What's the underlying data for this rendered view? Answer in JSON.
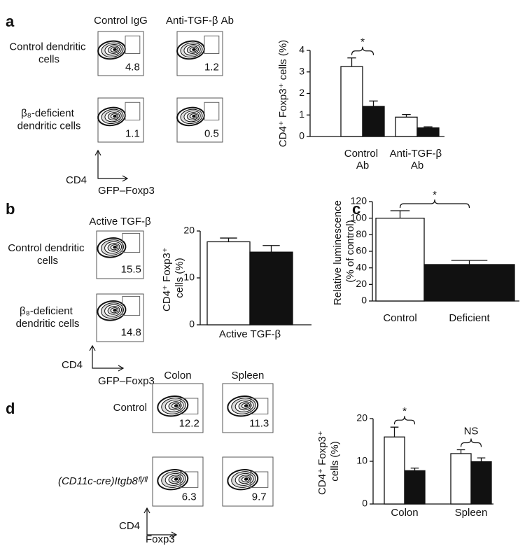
{
  "panel_labels": [
    "a",
    "b",
    "c",
    "d"
  ],
  "flow_panels": [
    {
      "columns": [
        "Control IgG",
        "Anti-TGF-β Ab"
      ],
      "rows": [
        "Control dendritic cells",
        "β₈-deficient dendritic cells"
      ],
      "gate_values": [
        [
          4.8,
          1.2
        ],
        [
          1.1,
          0.5
        ]
      ],
      "y_axis": "CD4",
      "x_axis": "GFP–Foxp3"
    },
    {
      "columns": [
        "Active TGF-β"
      ],
      "rows": [
        "Control dendritic cells",
        "β₈-deficient dendritic cells"
      ],
      "gate_values": [
        [
          15.5
        ],
        [
          14.8
        ]
      ],
      "y_axis": "CD4",
      "x_axis": "GFP–Foxp3"
    },
    {
      "columns": [
        "Colon",
        "Spleen"
      ],
      "rows": [
        "Control",
        "(CD11c-cre)Itgb8ᶠˡ/ᶠˡ"
      ],
      "gate_values": [
        [
          12.2,
          11.3
        ],
        [
          6.3,
          9.7
        ]
      ],
      "y_axis": "CD4",
      "x_axis": "Foxp3"
    }
  ],
  "chart_data": [
    {
      "type": "bar",
      "y_label": "CD4⁺ Foxp3⁺ cells (%)",
      "categories": [
        "Control Ab",
        "Anti-TGF-β Ab"
      ],
      "series": [
        {
          "color": "#ffffff",
          "values": [
            3.25,
            0.9
          ],
          "errors": [
            0.4,
            0.12
          ]
        },
        {
          "color": "#111111",
          "values": [
            1.4,
            0.4
          ],
          "errors": [
            0.25,
            0.05
          ]
        }
      ],
      "ylim": [
        0,
        4
      ],
      "yticks": [
        0,
        1,
        2,
        3,
        4
      ],
      "annotations": [
        "*"
      ]
    },
    {
      "type": "bar",
      "y_label": "CD4⁺ Foxp3⁺ cells (%)",
      "categories": [
        "Active TGF-β"
      ],
      "series": [
        {
          "color": "#ffffff",
          "values": [
            17.7
          ],
          "errors": [
            0.8
          ]
        },
        {
          "color": "#111111",
          "values": [
            15.5
          ],
          "errors": [
            1.4
          ]
        }
      ],
      "ylim": [
        0,
        20
      ],
      "yticks": [
        0,
        10,
        20
      ]
    },
    {
      "type": "bar",
      "y_label": "Relative luminescence (% of control)",
      "categories": [
        "Control",
        "Deficient"
      ],
      "values": [
        100,
        44
      ],
      "errors": [
        9,
        5
      ],
      "colors": [
        "#ffffff",
        "#111111"
      ],
      "ylim": [
        0,
        120
      ],
      "yticks": [
        0,
        20,
        40,
        60,
        80,
        100,
        120
      ],
      "annotations": [
        "*"
      ]
    },
    {
      "type": "bar",
      "y_label": "CD4⁺ Foxp3⁺ cells (%)",
      "categories": [
        "Colon",
        "Spleen"
      ],
      "series": [
        {
          "color": "#ffffff",
          "values": [
            15.7,
            11.8
          ],
          "errors": [
            2.3,
            0.9
          ]
        },
        {
          "color": "#111111",
          "values": [
            7.8,
            9.9
          ],
          "errors": [
            0.6,
            0.9
          ]
        }
      ],
      "ylim": [
        0,
        20
      ],
      "yticks": [
        0,
        10,
        20
      ],
      "annotations": [
        "*",
        "NS"
      ]
    }
  ]
}
